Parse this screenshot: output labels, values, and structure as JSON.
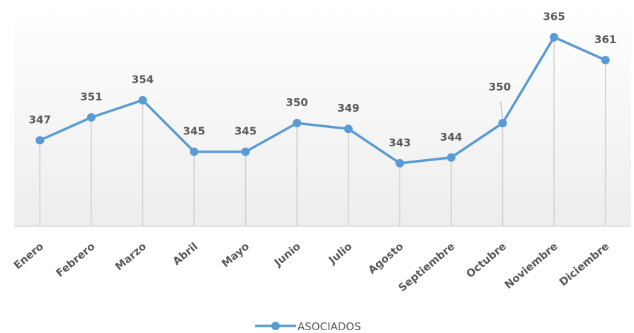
{
  "chart_data": {
    "type": "line",
    "categories": [
      "Enero",
      "Febrero",
      "Marzo",
      "Abril",
      "Mayo",
      "Junio",
      "Julio",
      "Agosto",
      "Septiembre",
      "Octubre",
      "Noviembre",
      "Diciembre"
    ],
    "series": [
      {
        "name": "ASOCIADOS",
        "color": "#5b9bd5",
        "values": [
          347,
          351,
          354,
          345,
          345,
          350,
          349,
          343,
          344,
          350,
          365,
          361
        ]
      }
    ],
    "ylim": [
      332,
      370.5
    ],
    "legend": "bottom"
  }
}
